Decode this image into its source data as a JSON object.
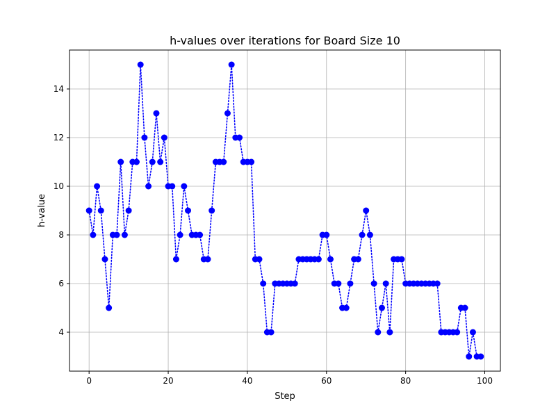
{
  "chart_data": {
    "type": "line",
    "title": "h-values over iterations for Board Size 10",
    "xlabel": "Step",
    "ylabel": "h-value",
    "xlim": [
      -4.95,
      103.95
    ],
    "ylim": [
      2.4,
      15.6
    ],
    "xticks": [
      0,
      20,
      40,
      60,
      80,
      100
    ],
    "yticks": [
      4,
      6,
      8,
      10,
      12,
      14
    ],
    "grid": true,
    "line_style": "dotted",
    "marker": "circle",
    "color": "#0000ff",
    "x": [
      0,
      1,
      2,
      3,
      4,
      5,
      6,
      7,
      8,
      9,
      10,
      11,
      12,
      13,
      14,
      15,
      16,
      17,
      18,
      19,
      20,
      21,
      22,
      23,
      24,
      25,
      26,
      27,
      28,
      29,
      30,
      31,
      32,
      33,
      34,
      35,
      36,
      37,
      38,
      39,
      40,
      41,
      42,
      43,
      44,
      45,
      46,
      47,
      48,
      49,
      50,
      51,
      52,
      53,
      54,
      55,
      56,
      57,
      58,
      59,
      60,
      61,
      62,
      63,
      64,
      65,
      66,
      67,
      68,
      69,
      70,
      71,
      72,
      73,
      74,
      75,
      76,
      77,
      78,
      79,
      80,
      81,
      82,
      83,
      84,
      85,
      86,
      87,
      88,
      89,
      90,
      91,
      92,
      93,
      94,
      95,
      96,
      97,
      98,
      99
    ],
    "y": [
      9,
      8,
      10,
      9,
      7,
      5,
      8,
      8,
      11,
      8,
      9,
      11,
      11,
      15,
      12,
      10,
      11,
      13,
      11,
      12,
      10,
      10,
      7,
      8,
      10,
      9,
      8,
      8,
      8,
      7,
      7,
      9,
      11,
      11,
      11,
      13,
      15,
      12,
      12,
      11,
      11,
      11,
      7,
      7,
      6,
      4,
      4,
      6,
      6,
      6,
      6,
      6,
      6,
      7,
      7,
      7,
      7,
      7,
      7,
      8,
      8,
      7,
      6,
      6,
      5,
      5,
      6,
      7,
      7,
      8,
      9,
      8,
      6,
      4,
      5,
      6,
      4,
      7,
      7,
      7,
      6,
      6,
      6,
      6,
      6,
      6,
      6,
      6,
      6,
      4,
      4,
      4,
      4,
      4,
      5,
      5,
      3,
      4,
      3,
      3
    ]
  }
}
